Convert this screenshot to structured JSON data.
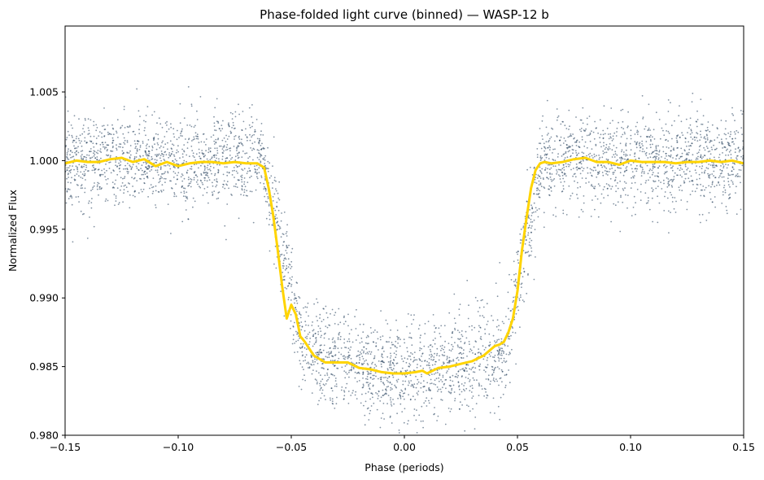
{
  "chart_data": {
    "type": "scatter",
    "title": "Phase-folded light curve (binned) — WASP-12 b",
    "xlabel": "Phase (periods)",
    "ylabel": "Normalized Flux",
    "xlim": [
      -0.15,
      0.15
    ],
    "ylim": [
      0.98,
      1.0098
    ],
    "x_ticks": [
      -0.15,
      -0.1,
      -0.05,
      0.0,
      0.05,
      0.1,
      0.15
    ],
    "x_tick_labels": [
      "−0.15",
      "−0.10",
      "−0.05",
      "0.00",
      "0.05",
      "0.10",
      "0.15"
    ],
    "y_ticks": [
      0.98,
      0.985,
      0.99,
      0.995,
      1.0,
      1.005
    ],
    "y_tick_labels": [
      "0.980",
      "0.985",
      "0.990",
      "0.995",
      "1.000",
      "1.005"
    ],
    "grid": false,
    "legend": "none",
    "series": [
      {
        "kind": "scatter",
        "description_of_values": "unbinned phase-folded flux points",
        "color": "#1f3b57",
        "transit": {
          "baseline": 1.0,
          "ingress_start": -0.063,
          "ingress_end": -0.045,
          "egress_start": 0.045,
          "egress_end": 0.061,
          "bottom_depth": 0.0155,
          "scatter_sigma": 0.0017
        }
      },
      {
        "kind": "line",
        "description_of_values": "binned flux",
        "color": "#ffd400",
        "x": [
          -0.15,
          -0.145,
          -0.14,
          -0.135,
          -0.13,
          -0.125,
          -0.12,
          -0.115,
          -0.11,
          -0.105,
          -0.1,
          -0.095,
          -0.09,
          -0.085,
          -0.08,
          -0.075,
          -0.07,
          -0.065,
          -0.062,
          -0.06,
          -0.058,
          -0.056,
          -0.054,
          -0.052,
          -0.05,
          -0.048,
          -0.046,
          -0.044,
          -0.042,
          -0.04,
          -0.035,
          -0.03,
          -0.025,
          -0.02,
          -0.015,
          -0.01,
          -0.005,
          0.0,
          0.005,
          0.008,
          0.01,
          0.015,
          0.02,
          0.025,
          0.03,
          0.035,
          0.04,
          0.042,
          0.044,
          0.046,
          0.048,
          0.05,
          0.052,
          0.054,
          0.056,
          0.058,
          0.06,
          0.062,
          0.065,
          0.07,
          0.075,
          0.08,
          0.085,
          0.09,
          0.095,
          0.1,
          0.105,
          0.11,
          0.115,
          0.12,
          0.125,
          0.13,
          0.135,
          0.14,
          0.145,
          0.15
        ],
        "y": [
          0.9998,
          1.0,
          0.9999,
          0.9999,
          1.0001,
          1.0002,
          0.9999,
          1.0001,
          0.9996,
          0.9999,
          0.9996,
          0.9998,
          0.9999,
          0.9999,
          0.9998,
          0.9999,
          0.9998,
          0.9998,
          0.9995,
          0.998,
          0.996,
          0.9935,
          0.9908,
          0.9885,
          0.9895,
          0.9888,
          0.9872,
          0.9868,
          0.9863,
          0.9858,
          0.9853,
          0.9853,
          0.9853,
          0.9849,
          0.9848,
          0.9846,
          0.9845,
          0.9845,
          0.9846,
          0.9847,
          0.9845,
          0.9849,
          0.985,
          0.9852,
          0.9854,
          0.9858,
          0.9865,
          0.9866,
          0.9868,
          0.9875,
          0.9885,
          0.9905,
          0.9935,
          0.9958,
          0.998,
          0.9993,
          0.9998,
          0.9999,
          0.9998,
          0.9999,
          1.0001,
          1.0002,
          0.9999,
          0.9999,
          0.9997,
          1.0,
          0.9999,
          0.9999,
          0.9999,
          0.9998,
          0.9999,
          0.9999,
          1.0,
          0.9999,
          1.0,
          0.9998
        ]
      }
    ]
  }
}
